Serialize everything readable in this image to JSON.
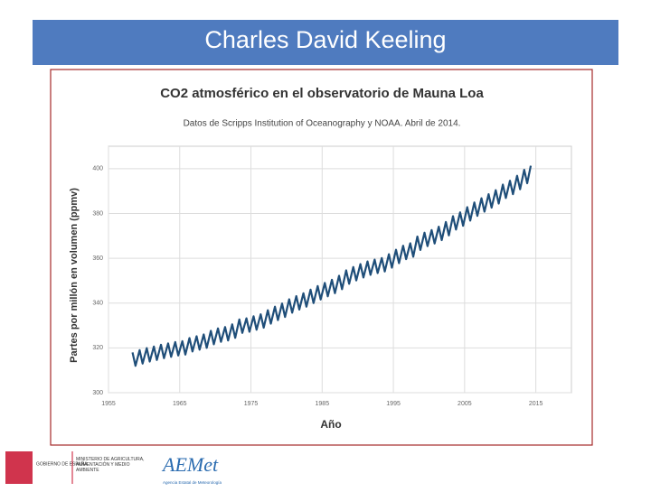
{
  "slide": {
    "title": "Charles David Keeling"
  },
  "chart_data": {
    "type": "line",
    "title": "CO2 atmosférico en el observatorio de Mauna Loa",
    "subtitle": "Datos de Scripps Institution of Oceanography y NOAA. Abril de 2014.",
    "x_label": "Año",
    "y_label": "Partes por millón en volumen (ppmv)",
    "color": "#1f4e79",
    "grid": true,
    "xlim": [
      1955,
      2020
    ],
    "xticks": [
      1955,
      1965,
      1975,
      1985,
      1995,
      2005,
      2015
    ],
    "ylim": [
      300,
      410
    ],
    "yticks": [
      300,
      320,
      340,
      360,
      380,
      400
    ],
    "x": [
      1958.37,
      1958.79,
      1959.37,
      1959.79,
      1960.37,
      1960.79,
      1961.37,
      1961.79,
      1962.37,
      1962.79,
      1963.37,
      1963.79,
      1964.37,
      1964.79,
      1965.37,
      1965.79,
      1966.37,
      1966.79,
      1967.37,
      1967.79,
      1968.37,
      1968.79,
      1969.37,
      1969.79,
      1970.37,
      1970.79,
      1971.37,
      1971.79,
      1972.37,
      1972.79,
      1973.37,
      1973.79,
      1974.37,
      1974.79,
      1975.37,
      1975.79,
      1976.37,
      1976.79,
      1977.37,
      1977.79,
      1978.37,
      1978.79,
      1979.37,
      1979.79,
      1980.37,
      1980.79,
      1981.37,
      1981.79,
      1982.37,
      1982.79,
      1983.37,
      1983.79,
      1984.37,
      1984.79,
      1985.37,
      1985.79,
      1986.37,
      1986.79,
      1987.37,
      1987.79,
      1988.37,
      1988.79,
      1989.37,
      1989.79,
      1990.37,
      1990.79,
      1991.37,
      1991.79,
      1992.37,
      1992.79,
      1993.37,
      1993.79,
      1994.37,
      1994.79,
      1995.37,
      1995.79,
      1996.37,
      1996.79,
      1997.37,
      1997.79,
      1998.37,
      1998.79,
      1999.37,
      1999.79,
      2000.37,
      2000.79,
      2001.37,
      2001.79,
      2002.37,
      2002.79,
      2003.37,
      2003.79,
      2004.37,
      2004.79,
      2005.37,
      2005.79,
      2006.37,
      2006.79,
      2007.37,
      2007.79,
      2008.37,
      2008.79,
      2009.37,
      2009.79,
      2010.37,
      2010.79,
      2011.37,
      2011.79,
      2012.37,
      2012.79,
      2013.37,
      2013.79,
      2014.29
    ],
    "values": [
      318.0,
      312.0,
      319.0,
      313.0,
      319.9,
      313.9,
      320.6,
      314.6,
      321.4,
      315.4,
      322.0,
      316.0,
      322.6,
      316.6,
      323.0,
      317.0,
      324.4,
      318.4,
      325.2,
      319.2,
      326.0,
      320.0,
      327.6,
      321.6,
      328.7,
      322.7,
      329.3,
      323.3,
      330.5,
      324.5,
      332.7,
      326.7,
      333.2,
      327.2,
      334.1,
      328.1,
      335.0,
      329.0,
      336.8,
      330.8,
      338.4,
      332.4,
      339.8,
      333.8,
      341.7,
      335.7,
      343.1,
      337.1,
      344.4,
      338.4,
      346.0,
      340.0,
      347.6,
      341.6,
      349.0,
      343.0,
      350.4,
      344.4,
      352.2,
      346.2,
      354.6,
      348.6,
      356.1,
      350.1,
      357.4,
      351.4,
      358.6,
      352.6,
      359.4,
      353.4,
      360.1,
      354.1,
      361.8,
      355.8,
      363.8,
      357.8,
      365.6,
      359.6,
      366.7,
      360.7,
      369.7,
      363.7,
      371.4,
      365.4,
      372.6,
      366.6,
      374.1,
      368.1,
      376.2,
      370.2,
      378.8,
      372.8,
      380.5,
      374.5,
      382.8,
      376.8,
      384.9,
      378.9,
      386.8,
      380.8,
      388.6,
      382.6,
      390.4,
      384.4,
      392.9,
      386.9,
      394.6,
      388.6,
      396.8,
      390.8,
      399.5,
      393.5,
      401.3
    ]
  },
  "footer": {
    "government": "GOBIERNO DE ESPAÑA",
    "ministry": "MINISTERIO DE AGRICULTURA, ALIMENTACIÓN Y MEDIO AMBIENTE",
    "agency_logo": "AEMet",
    "agency_name": "Agencia Estatal de Meteorología"
  }
}
